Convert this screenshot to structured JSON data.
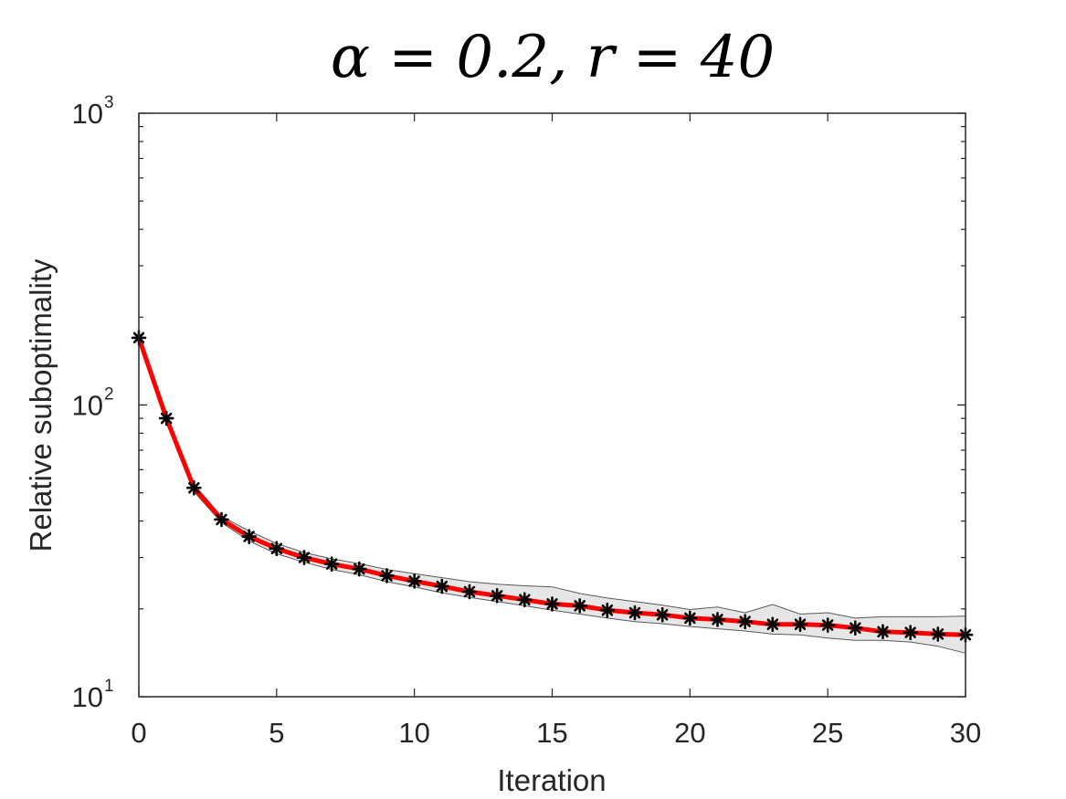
{
  "chart_data": {
    "type": "line",
    "title": "α = 0.2, r = 40",
    "xlabel": "Iteration",
    "ylabel": "Relative suboptimality",
    "xlim": [
      0,
      30
    ],
    "ylim": [
      10,
      1000
    ],
    "yscale": "log",
    "grid": false,
    "x_ticks": [
      "0",
      "5",
      "10",
      "15",
      "20",
      "25",
      "30"
    ],
    "y_ticks": [
      {
        "base": "10",
        "exp": "1"
      },
      {
        "base": "10",
        "exp": "2"
      },
      {
        "base": "10",
        "exp": "3"
      }
    ],
    "colors": {
      "line": "#ff0000",
      "marker": "#000000",
      "band_fill": "#e6e6e6",
      "band_edge": "#5a5a5a",
      "axis": "#262626"
    },
    "series": [
      {
        "x": [
          0,
          1,
          2,
          3,
          4,
          5,
          6,
          7,
          8,
          9,
          10,
          11,
          12,
          13,
          14,
          15,
          16,
          17,
          18,
          19,
          20,
          21,
          22,
          23,
          24,
          25,
          26,
          27,
          28,
          29,
          30
        ],
        "values": [
          170,
          90,
          52,
          40.5,
          35.4,
          32.2,
          30,
          28.5,
          27.4,
          26,
          24.9,
          23.9,
          22.9,
          22.2,
          21.5,
          20.8,
          20.5,
          19.8,
          19.4,
          19.1,
          18.6,
          18.4,
          18.1,
          17.7,
          17.7,
          17.6,
          17.2,
          16.7,
          16.6,
          16.4,
          16.3
        ],
        "upper": [
          172,
          91,
          53.5,
          41.5,
          37,
          33.5,
          31.2,
          29.7,
          28.6,
          27.3,
          26.4,
          25.6,
          24.8,
          24.3,
          24,
          23.8,
          22.6,
          21.8,
          21.2,
          20.6,
          19.9,
          20.3,
          19.4,
          20.7,
          19.2,
          19.4,
          18.6,
          18.8,
          18.8,
          18.8,
          18.9
        ],
        "lower": [
          168,
          89,
          50.5,
          39.5,
          34.2,
          30.9,
          28.9,
          27.3,
          26.2,
          24.8,
          23.8,
          22.7,
          21.9,
          21.2,
          20.5,
          19.8,
          19.2,
          18.6,
          18.1,
          17.8,
          17.4,
          17.1,
          16.8,
          16.4,
          16.3,
          15.9,
          15.6,
          15.6,
          15.4,
          14.9,
          14.1
        ]
      }
    ]
  }
}
